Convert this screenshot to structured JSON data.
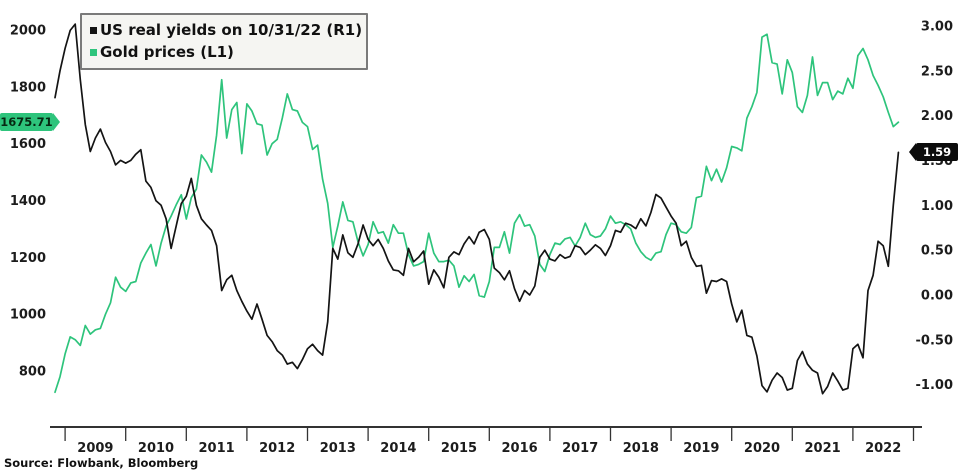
{
  "legend": {
    "items": [
      {
        "label": "US real yields on 10/31/22 (R1)",
        "color": "#141414"
      },
      {
        "label": "Gold prices (L1)",
        "color": "#2ec47c"
      }
    ]
  },
  "badges": {
    "gold_last": {
      "value": "1675.71",
      "bg": "#2ec47c",
      "text_color": "#062812"
    },
    "yield_last": {
      "value": "1.59",
      "bg": "#0c0c0c",
      "text_color": "#ffffff"
    }
  },
  "source": "Source: Flowbank, Bloomberg",
  "axes": {
    "left_ticks": [
      "2000",
      "1800",
      "1600",
      "1400",
      "1200",
      "1000",
      "800"
    ],
    "right_ticks": [
      "3.00",
      "2.50",
      "2.00",
      "1.50",
      "1.00",
      "0.50",
      "0.00",
      "-0.50",
      "-1.00"
    ],
    "x_ticks": [
      "2009",
      "2010",
      "2011",
      "2012",
      "2013",
      "2014",
      "2015",
      "2016",
      "2017",
      "2018",
      "2019",
      "2020",
      "2021",
      "2022"
    ]
  },
  "chart_data": {
    "type": "line",
    "title": "",
    "frequency": "monthly",
    "start_month": "2008-11",
    "end_month": "2022-10",
    "x_tick_years": [
      2009,
      2010,
      2011,
      2012,
      2013,
      2014,
      2015,
      2016,
      2017,
      2018,
      2019,
      2020,
      2021,
      2022
    ],
    "left_axis": {
      "series": "Gold prices",
      "range": [
        800,
        2000
      ]
    },
    "right_axis": {
      "series": "US real yields",
      "range": [
        -1.0,
        3.0
      ]
    },
    "grid": false,
    "legend_position": "top-left",
    "series": [
      {
        "name": "Gold prices",
        "axis": "L1",
        "color": "#2ec47c",
        "last_value": 1675.71,
        "values": [
          725,
          780,
          860,
          920,
          910,
          890,
          960,
          930,
          945,
          950,
          1000,
          1040,
          1130,
          1095,
          1080,
          1110,
          1115,
          1180,
          1215,
          1245,
          1170,
          1250,
          1310,
          1345,
          1385,
          1420,
          1335,
          1410,
          1440,
          1560,
          1535,
          1500,
          1630,
          1825,
          1620,
          1720,
          1745,
          1565,
          1740,
          1715,
          1670,
          1665,
          1560,
          1600,
          1615,
          1690,
          1775,
          1720,
          1715,
          1675,
          1660,
          1580,
          1595,
          1475,
          1390,
          1235,
          1310,
          1395,
          1330,
          1325,
          1255,
          1205,
          1245,
          1325,
          1285,
          1290,
          1250,
          1315,
          1285,
          1285,
          1210,
          1170,
          1175,
          1185,
          1285,
          1215,
          1185,
          1185,
          1190,
          1170,
          1095,
          1135,
          1115,
          1140,
          1065,
          1060,
          1115,
          1235,
          1235,
          1290,
          1215,
          1320,
          1350,
          1310,
          1315,
          1275,
          1175,
          1150,
          1210,
          1250,
          1245,
          1265,
          1270,
          1240,
          1270,
          1320,
          1280,
          1270,
          1275,
          1300,
          1345,
          1320,
          1325,
          1315,
          1300,
          1250,
          1220,
          1200,
          1190,
          1215,
          1220,
          1280,
          1320,
          1315,
          1290,
          1285,
          1305,
          1410,
          1415,
          1520,
          1470,
          1510,
          1465,
          1515,
          1590,
          1585,
          1575,
          1690,
          1730,
          1780,
          1975,
          1985,
          1885,
          1880,
          1775,
          1895,
          1850,
          1730,
          1710,
          1770,
          1905,
          1770,
          1815,
          1815,
          1755,
          1785,
          1775,
          1830,
          1795,
          1910,
          1935,
          1895,
          1840,
          1805,
          1765,
          1710,
          1660,
          1675.71
        ]
      },
      {
        "name": "US real yields on 10/31/22",
        "axis": "R1",
        "color": "#141414",
        "last_value": 1.59,
        "values": [
          2.2,
          2.5,
          2.75,
          2.95,
          3.02,
          2.4,
          1.9,
          1.6,
          1.75,
          1.85,
          1.7,
          1.6,
          1.45,
          1.5,
          1.47,
          1.5,
          1.57,
          1.62,
          1.27,
          1.2,
          1.05,
          1.0,
          0.85,
          0.52,
          0.77,
          1.02,
          1.1,
          1.3,
          1.0,
          0.85,
          0.78,
          0.72,
          0.55,
          0.05,
          0.17,
          0.22,
          0.05,
          -0.07,
          -0.18,
          -0.27,
          -0.1,
          -0.27,
          -0.45,
          -0.52,
          -0.62,
          -0.67,
          -0.77,
          -0.75,
          -0.82,
          -0.72,
          -0.6,
          -0.55,
          -0.62,
          -0.67,
          -0.3,
          0.52,
          0.4,
          0.67,
          0.47,
          0.42,
          0.57,
          0.78,
          0.62,
          0.55,
          0.62,
          0.52,
          0.38,
          0.28,
          0.27,
          0.22,
          0.52,
          0.37,
          0.42,
          0.49,
          0.12,
          0.28,
          0.2,
          0.08,
          0.42,
          0.48,
          0.45,
          0.57,
          0.65,
          0.57,
          0.7,
          0.73,
          0.62,
          0.3,
          0.25,
          0.17,
          0.27,
          0.07,
          -0.07,
          0.05,
          0.0,
          0.1,
          0.42,
          0.5,
          0.4,
          0.38,
          0.45,
          0.41,
          0.43,
          0.55,
          0.53,
          0.45,
          0.5,
          0.56,
          0.52,
          0.44,
          0.55,
          0.72,
          0.7,
          0.8,
          0.78,
          0.74,
          0.85,
          0.77,
          0.92,
          1.12,
          1.08,
          0.98,
          0.88,
          0.8,
          0.55,
          0.6,
          0.42,
          0.32,
          0.33,
          0.02,
          0.16,
          0.15,
          0.18,
          0.15,
          -0.1,
          -0.3,
          -0.17,
          -0.45,
          -0.47,
          -0.68,
          -1.01,
          -1.08,
          -0.95,
          -0.87,
          -0.92,
          -1.06,
          -1.04,
          -0.73,
          -0.63,
          -0.77,
          -0.84,
          -0.87,
          -1.1,
          -1.02,
          -0.87,
          -0.96,
          -1.06,
          -1.04,
          -0.6,
          -0.55,
          -0.7,
          0.05,
          0.22,
          0.6,
          0.55,
          0.32,
          1.0,
          1.59
        ]
      }
    ]
  }
}
